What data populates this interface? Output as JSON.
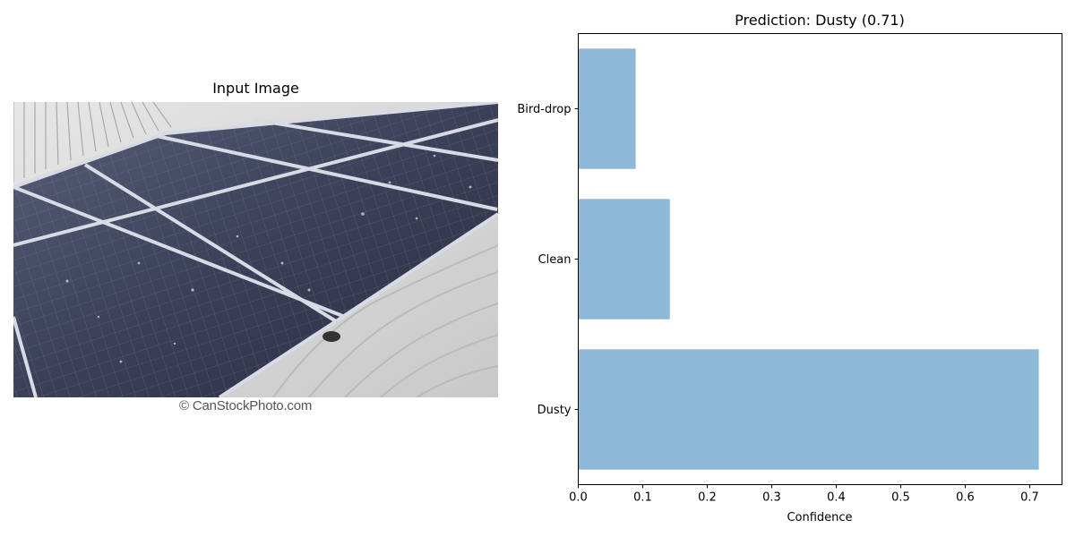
{
  "left_panel": {
    "title": "Input Image",
    "photo_subject": "solar panels on corrugated metal roof",
    "watermark": "© CanStockPhoto.com"
  },
  "chart_data": {
    "type": "bar",
    "orientation": "horizontal",
    "title": "Prediction: Dusty (0.71)",
    "xlabel": "Confidence",
    "ylabel": "",
    "categories": [
      "Dusty",
      "Clean",
      "Bird-drop"
    ],
    "values": [
      0.714,
      0.142,
      0.089
    ],
    "xlim": [
      0,
      0.75
    ],
    "xticks": [
      "0.0",
      "0.1",
      "0.2",
      "0.3",
      "0.4",
      "0.5",
      "0.6",
      "0.7"
    ],
    "bar_color": "#8db8d8",
    "grid": false
  }
}
